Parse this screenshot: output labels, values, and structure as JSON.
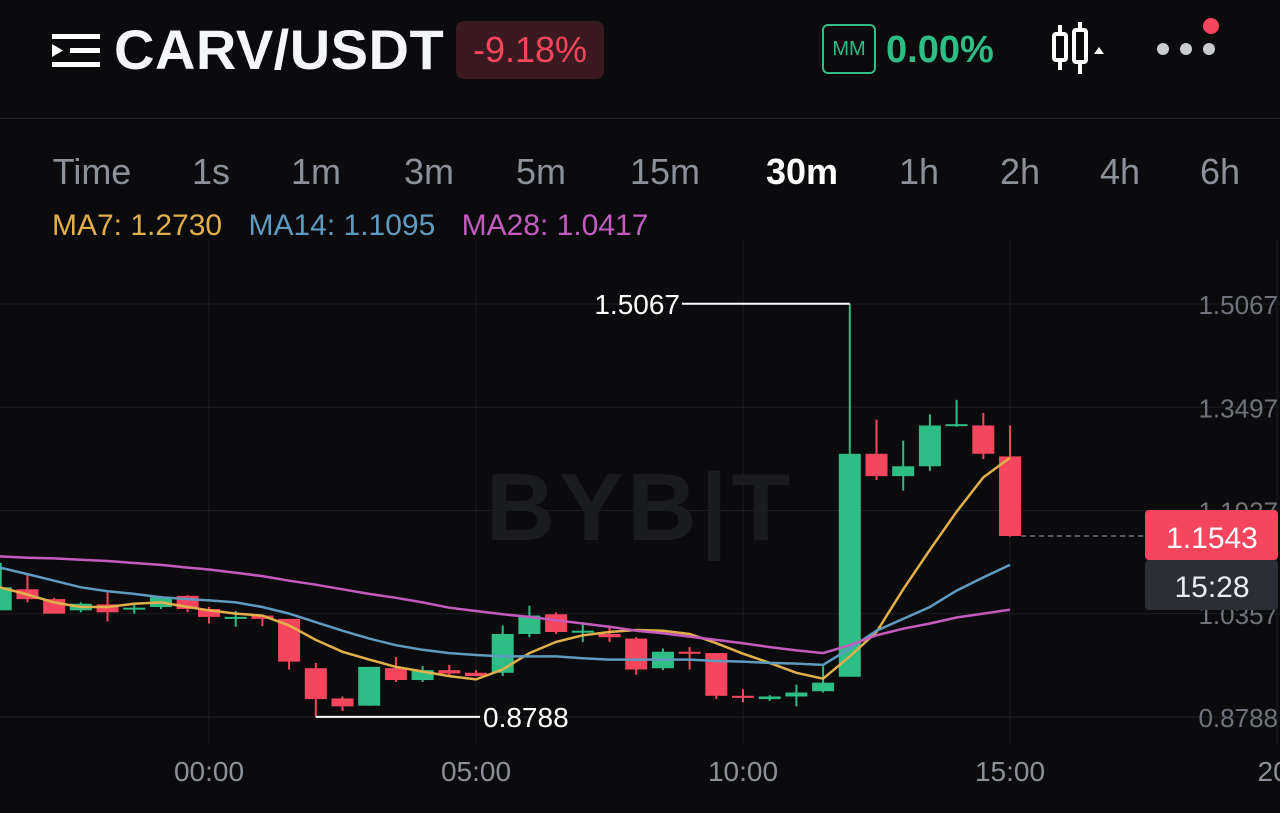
{
  "header": {
    "pair": "CARV/USDT",
    "change": "-9.18%",
    "mm_label": "MM",
    "mm_value": "0.00%"
  },
  "intervals": {
    "items": [
      "Time",
      "1s",
      "1m",
      "3m",
      "5m",
      "15m",
      "30m",
      "1h",
      "2h",
      "4h",
      "6h"
    ],
    "active": "30m"
  },
  "ma": {
    "ma7_label": "MA7: 1.2730",
    "ma14_label": "MA14: 1.1095",
    "ma28_label": "MA28: 1.0417"
  },
  "colors": {
    "up": "#2ebd85",
    "down": "#f6465d",
    "ma7": "#e2b04b",
    "ma14": "#5f9bc0",
    "ma28": "#c45cc0",
    "background": "#0b0b0d"
  },
  "watermark": "BYB|T",
  "chart_data": {
    "type": "candlestick",
    "interval": "30m",
    "y_ticks": [
      "1.5067",
      "1.3497",
      "1.1927",
      "1.0357",
      "0.8788"
    ],
    "y_tick_values": [
      1.5067,
      1.3497,
      1.1927,
      1.0357,
      0.8788
    ],
    "x_ticks": [
      "00:00",
      "05:00",
      "10:00",
      "15:00",
      "20:"
    ],
    "x_tick_values": [
      0,
      5,
      10,
      15,
      20
    ],
    "high_label": "1.5067",
    "low_label": "0.8788",
    "current_price": "1.1543",
    "countdown": "15:28",
    "candles": [
      {
        "t": -3.9,
        "o": 1.041,
        "h": 1.113,
        "l": 1.041,
        "c": 1.076
      },
      {
        "t": -3.4,
        "o": 1.073,
        "h": 1.096,
        "l": 1.053,
        "c": 1.058
      },
      {
        "t": -2.9,
        "o": 1.058,
        "h": 1.06,
        "l": 1.036,
        "c": 1.036
      },
      {
        "t": -2.4,
        "o": 1.041,
        "h": 1.053,
        "l": 1.038,
        "c": 1.051
      },
      {
        "t": -1.9,
        "o": 1.05,
        "h": 1.068,
        "l": 1.024,
        "c": 1.038
      },
      {
        "t": -1.4,
        "o": 1.045,
        "h": 1.053,
        "l": 1.036,
        "c": 1.045
      },
      {
        "t": -0.9,
        "o": 1.046,
        "h": 1.063,
        "l": 1.043,
        "c": 1.061
      },
      {
        "t": -0.4,
        "o": 1.063,
        "h": 1.064,
        "l": 1.038,
        "c": 1.043
      },
      {
        "t": 0.0,
        "o": 1.043,
        "h": 1.046,
        "l": 1.021,
        "c": 1.031
      },
      {
        "t": 0.5,
        "o": 1.031,
        "h": 1.04,
        "l": 1.016,
        "c": 1.031
      },
      {
        "t": 1.0,
        "o": 1.033,
        "h": 1.033,
        "l": 1.017,
        "c": 1.028
      },
      {
        "t": 1.5,
        "o": 1.028,
        "h": 1.028,
        "l": 0.951,
        "c": 0.963
      },
      {
        "t": 2.0,
        "o": 0.953,
        "h": 0.961,
        "l": 0.879,
        "c": 0.906
      },
      {
        "t": 2.5,
        "o": 0.907,
        "h": 0.91,
        "l": 0.888,
        "c": 0.895
      },
      {
        "t": 3.0,
        "o": 0.896,
        "h": 0.955,
        "l": 0.896,
        "c": 0.955
      },
      {
        "t": 3.5,
        "o": 0.953,
        "h": 0.97,
        "l": 0.932,
        "c": 0.935
      },
      {
        "t": 4.0,
        "o": 0.935,
        "h": 0.956,
        "l": 0.932,
        "c": 0.95
      },
      {
        "t": 4.5,
        "o": 0.95,
        "h": 0.958,
        "l": 0.941,
        "c": 0.945
      },
      {
        "t": 5.0,
        "o": 0.946,
        "h": 0.95,
        "l": 0.941,
        "c": 0.941
      },
      {
        "t": 5.5,
        "o": 0.946,
        "h": 1.018,
        "l": 0.941,
        "c": 1.005
      },
      {
        "t": 6.0,
        "o": 1.005,
        "h": 1.048,
        "l": 1.0,
        "c": 1.033
      },
      {
        "t": 6.5,
        "o": 1.035,
        "h": 1.038,
        "l": 1.005,
        "c": 1.008
      },
      {
        "t": 7.0,
        "o": 1.01,
        "h": 1.023,
        "l": 0.993,
        "c": 1.01
      },
      {
        "t": 7.5,
        "o": 1.005,
        "h": 1.015,
        "l": 0.993,
        "c": 1.0
      },
      {
        "t": 8.0,
        "o": 0.998,
        "h": 1.0,
        "l": 0.943,
        "c": 0.951
      },
      {
        "t": 8.5,
        "o": 0.953,
        "h": 0.983,
        "l": 0.95,
        "c": 0.978
      },
      {
        "t": 9.0,
        "o": 0.978,
        "h": 0.985,
        "l": 0.951,
        "c": 0.976
      },
      {
        "t": 9.5,
        "o": 0.976,
        "h": 0.976,
        "l": 0.906,
        "c": 0.911
      },
      {
        "t": 10.0,
        "o": 0.911,
        "h": 0.921,
        "l": 0.901,
        "c": 0.908
      },
      {
        "t": 10.5,
        "o": 0.906,
        "h": 0.912,
        "l": 0.903,
        "c": 0.91
      },
      {
        "t": 11.0,
        "o": 0.91,
        "h": 0.928,
        "l": 0.895,
        "c": 0.916
      },
      {
        "t": 11.5,
        "o": 0.918,
        "h": 0.956,
        "l": 0.916,
        "c": 0.931
      },
      {
        "t": 12.0,
        "o": 0.94,
        "h": 1.507,
        "l": 0.94,
        "c": 1.279
      },
      {
        "t": 12.5,
        "o": 1.279,
        "h": 1.331,
        "l": 1.239,
        "c": 1.245
      },
      {
        "t": 13.0,
        "o": 1.245,
        "h": 1.299,
        "l": 1.223,
        "c": 1.26
      },
      {
        "t": 13.5,
        "o": 1.26,
        "h": 1.339,
        "l": 1.253,
        "c": 1.322
      },
      {
        "t": 14.0,
        "o": 1.323,
        "h": 1.361,
        "l": 1.32,
        "c": 1.324
      },
      {
        "t": 14.5,
        "o": 1.322,
        "h": 1.341,
        "l": 1.271,
        "c": 1.279
      },
      {
        "t": 15.0,
        "o": 1.275,
        "h": 1.322,
        "l": 1.153,
        "c": 1.154
      }
    ],
    "series": [
      {
        "name": "MA7",
        "points": [
          [
            -4.0,
            1.076
          ],
          [
            -3.4,
            1.065
          ],
          [
            -2.9,
            1.053
          ],
          [
            -2.4,
            1.046
          ],
          [
            -1.9,
            1.046
          ],
          [
            -1.4,
            1.051
          ],
          [
            -0.9,
            1.053
          ],
          [
            -0.4,
            1.046
          ],
          [
            0.0,
            1.041
          ],
          [
            0.5,
            1.036
          ],
          [
            1.0,
            1.033
          ],
          [
            1.5,
            1.018
          ],
          [
            2.0,
            0.996
          ],
          [
            2.5,
            0.978
          ],
          [
            3.0,
            0.966
          ],
          [
            3.5,
            0.955
          ],
          [
            4.0,
            0.948
          ],
          [
            4.5,
            0.941
          ],
          [
            5.0,
            0.936
          ],
          [
            5.5,
            0.951
          ],
          [
            6.0,
            0.976
          ],
          [
            6.5,
            0.993
          ],
          [
            7.0,
            1.003
          ],
          [
            7.5,
            1.008
          ],
          [
            8.0,
            1.011
          ],
          [
            8.5,
            1.01
          ],
          [
            9.0,
            1.005
          ],
          [
            9.5,
            0.991
          ],
          [
            10.0,
            0.975
          ],
          [
            10.5,
            0.961
          ],
          [
            11.0,
            0.946
          ],
          [
            11.5,
            0.937
          ],
          [
            12.0,
            0.971
          ],
          [
            12.5,
            1.008
          ],
          [
            13.0,
            1.073
          ],
          [
            13.5,
            1.133
          ],
          [
            14.0,
            1.191
          ],
          [
            14.5,
            1.243
          ],
          [
            15.0,
            1.273
          ]
        ]
      },
      {
        "name": "MA14",
        "points": [
          [
            -4.0,
            1.106
          ],
          [
            -3.4,
            1.096
          ],
          [
            -2.9,
            1.086
          ],
          [
            -2.4,
            1.076
          ],
          [
            -1.9,
            1.07
          ],
          [
            -1.4,
            1.066
          ],
          [
            -0.9,
            1.061
          ],
          [
            -0.4,
            1.058
          ],
          [
            0.0,
            1.056
          ],
          [
            0.5,
            1.053
          ],
          [
            1.0,
            1.046
          ],
          [
            1.5,
            1.036
          ],
          [
            2.0,
            1.023
          ],
          [
            2.5,
            1.01
          ],
          [
            3.0,
            0.998
          ],
          [
            3.5,
            0.988
          ],
          [
            4.0,
            0.981
          ],
          [
            4.5,
            0.976
          ],
          [
            5.0,
            0.973
          ],
          [
            5.5,
            0.971
          ],
          [
            6.0,
            0.971
          ],
          [
            6.5,
            0.971
          ],
          [
            7.0,
            0.968
          ],
          [
            7.5,
            0.966
          ],
          [
            8.0,
            0.966
          ],
          [
            8.5,
            0.966
          ],
          [
            9.0,
            0.966
          ],
          [
            9.5,
            0.964
          ],
          [
            10.0,
            0.963
          ],
          [
            10.5,
            0.961
          ],
          [
            11.0,
            0.96
          ],
          [
            11.5,
            0.958
          ],
          [
            12.0,
            0.983
          ],
          [
            12.5,
            1.01
          ],
          [
            13.0,
            1.028
          ],
          [
            13.5,
            1.046
          ],
          [
            14.0,
            1.071
          ],
          [
            14.5,
            1.091
          ],
          [
            15.0,
            1.11
          ]
        ]
      },
      {
        "name": "MA28",
        "points": [
          [
            -4.0,
            1.123
          ],
          [
            -3.4,
            1.121
          ],
          [
            -2.9,
            1.12
          ],
          [
            -2.4,
            1.118
          ],
          [
            -1.9,
            1.116
          ],
          [
            -1.4,
            1.113
          ],
          [
            -0.9,
            1.11
          ],
          [
            -0.4,
            1.106
          ],
          [
            0.0,
            1.103
          ],
          [
            0.5,
            1.098
          ],
          [
            1.0,
            1.093
          ],
          [
            1.5,
            1.086
          ],
          [
            2.0,
            1.08
          ],
          [
            2.5,
            1.073
          ],
          [
            3.0,
            1.066
          ],
          [
            3.5,
            1.06
          ],
          [
            4.0,
            1.053
          ],
          [
            4.5,
            1.045
          ],
          [
            5.0,
            1.04
          ],
          [
            5.5,
            1.035
          ],
          [
            6.0,
            1.031
          ],
          [
            6.5,
            1.026
          ],
          [
            7.0,
            1.021
          ],
          [
            7.5,
            1.016
          ],
          [
            8.0,
            1.01
          ],
          [
            8.5,
            1.006
          ],
          [
            9.0,
            1.001
          ],
          [
            9.5,
            0.996
          ],
          [
            10.0,
            0.991
          ],
          [
            10.5,
            0.985
          ],
          [
            11.0,
            0.98
          ],
          [
            11.5,
            0.976
          ],
          [
            12.0,
            0.988
          ],
          [
            12.5,
            1.003
          ],
          [
            13.0,
            1.013
          ],
          [
            13.5,
            1.021
          ],
          [
            14.0,
            1.03
          ],
          [
            14.5,
            1.036
          ],
          [
            15.0,
            1.042
          ]
        ]
      }
    ]
  }
}
